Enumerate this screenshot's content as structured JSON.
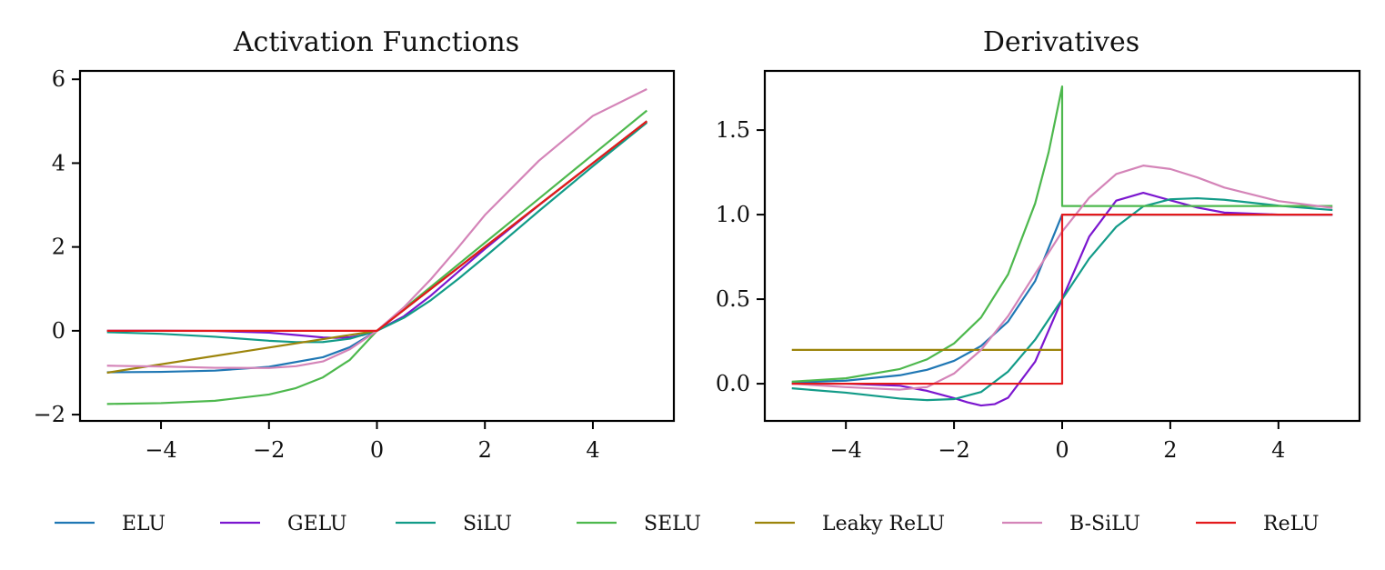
{
  "chart_data": [
    {
      "type": "line",
      "title": "Activation Functions",
      "xlabel": "",
      "ylabel": "",
      "xlim": [
        -5.5,
        5.5
      ],
      "ylim": [
        -2.15,
        6.2
      ],
      "xticks": [
        -4,
        -2,
        0,
        2,
        4
      ],
      "yticks": [
        -2,
        0,
        2,
        4,
        6
      ],
      "x_tick_labels": [
        "−4",
        "−2",
        "0",
        "2",
        "4"
      ],
      "y_tick_labels": [
        "−2",
        "0",
        "2",
        "4",
        "6"
      ],
      "grid": false,
      "series": [
        {
          "name": "ELU",
          "color": "#1f77b4",
          "x": [
            -5,
            -4,
            -3,
            -2,
            -1,
            -0.5,
            0,
            1,
            2,
            3,
            4,
            5
          ],
          "y": [
            -0.99,
            -0.98,
            -0.95,
            -0.86,
            -0.63,
            -0.39,
            0,
            1,
            2,
            3,
            4,
            5
          ]
        },
        {
          "name": "GELU",
          "color": "#7b16cf",
          "x": [
            -5,
            -4,
            -3,
            -2,
            -1.5,
            -1,
            -0.75,
            -0.5,
            -0.25,
            0,
            0.5,
            1,
            1.5,
            2,
            3,
            4,
            5
          ],
          "y": [
            0,
            0,
            -0.004,
            -0.045,
            -0.1,
            -0.159,
            -0.17,
            -0.154,
            -0.1,
            0,
            0.346,
            0.841,
            1.4,
            1.955,
            2.996,
            4,
            5
          ]
        },
        {
          "name": "SiLU",
          "color": "#129b88",
          "x": [
            -5,
            -4,
            -3,
            -2,
            -1.5,
            -1,
            -0.5,
            0,
            0.5,
            1,
            1.5,
            2,
            3,
            4,
            5
          ],
          "y": [
            -0.033,
            -0.072,
            -0.142,
            -0.238,
            -0.27,
            -0.269,
            -0.189,
            0,
            0.311,
            0.731,
            1.23,
            1.762,
            2.857,
            3.928,
            4.967
          ]
        },
        {
          "name": "SELU",
          "color": "#4db84d",
          "x": [
            -5,
            -4,
            -3,
            -2,
            -1.5,
            -1,
            -0.5,
            0,
            1,
            2,
            3,
            4,
            5
          ],
          "y": [
            -1.746,
            -1.726,
            -1.67,
            -1.52,
            -1.367,
            -1.111,
            -0.692,
            0,
            1.0507,
            2.101,
            3.152,
            4.203,
            5.254
          ]
        },
        {
          "name": "Leaky ReLU",
          "color": "#9c840b",
          "x": [
            -5,
            0,
            1,
            2,
            3,
            4,
            5
          ],
          "y": [
            -1.0,
            0,
            1,
            2,
            3,
            4,
            5
          ]
        },
        {
          "name": "B-SiLU",
          "color": "#d484b8",
          "x": [
            -5,
            -4,
            -3,
            -2,
            -1.5,
            -1,
            -0.5,
            0,
            0.5,
            1,
            1.5,
            2,
            3,
            4,
            5
          ],
          "y": [
            -0.833,
            -0.852,
            -0.882,
            -0.888,
            -0.845,
            -0.731,
            -0.439,
            0,
            0.561,
            1.231,
            1.98,
            2.762,
            4.057,
            5.128,
            5.767
          ]
        },
        {
          "name": "ReLU",
          "color": "#e31a1c",
          "x": [
            -5,
            0,
            1,
            2,
            3,
            4,
            5
          ],
          "y": [
            0,
            0,
            1,
            2,
            3,
            4,
            5
          ]
        }
      ]
    },
    {
      "type": "line",
      "title": "Derivatives",
      "xlabel": "",
      "ylabel": "",
      "xlim": [
        -5.5,
        5.5
      ],
      "ylim": [
        -0.22,
        1.85
      ],
      "xticks": [
        -4,
        -2,
        0,
        2,
        4
      ],
      "yticks": [
        0.0,
        0.5,
        1.0,
        1.5
      ],
      "x_tick_labels": [
        "−4",
        "−2",
        "0",
        "2",
        "4"
      ],
      "y_tick_labels": [
        "0.0",
        "0.5",
        "1.0",
        "1.5"
      ],
      "grid": false,
      "series": [
        {
          "name": "ELU",
          "color": "#1f77b4",
          "x": [
            -5,
            -4,
            -3,
            -2.5,
            -2,
            -1.5,
            -1,
            -0.5,
            0,
            1,
            2,
            3,
            4,
            5
          ],
          "y": [
            0.007,
            0.018,
            0.05,
            0.082,
            0.135,
            0.223,
            0.368,
            0.607,
            1.0,
            1.0,
            1.0,
            1.0,
            1.0,
            1.0
          ]
        },
        {
          "name": "GELU",
          "color": "#7b16cf",
          "x": [
            -5,
            -4,
            -3,
            -2.5,
            -2,
            -1.75,
            -1.5,
            -1.25,
            -1,
            -0.5,
            0,
            0.5,
            1,
            1.5,
            2,
            2.5,
            3,
            4,
            5
          ],
          "y": [
            0,
            0,
            -0.012,
            -0.042,
            -0.085,
            -0.11,
            -0.129,
            -0.121,
            -0.083,
            0.13,
            0.5,
            0.87,
            1.083,
            1.129,
            1.085,
            1.042,
            1.012,
            1.0,
            1.0
          ]
        },
        {
          "name": "SiLU",
          "color": "#129b88",
          "x": [
            -5,
            -4,
            -3,
            -2.5,
            -2,
            -1.5,
            -1,
            -0.5,
            0,
            0.5,
            1,
            1.5,
            2,
            2.5,
            3,
            4,
            5
          ],
          "y": [
            -0.027,
            -0.053,
            -0.088,
            -0.097,
            -0.091,
            -0.049,
            0.072,
            0.26,
            0.5,
            0.74,
            0.928,
            1.049,
            1.091,
            1.097,
            1.088,
            1.053,
            1.027
          ]
        },
        {
          "name": "SELU",
          "color": "#4db84d",
          "x": [
            -5,
            -4,
            -3,
            -2.5,
            -2,
            -1.5,
            -1,
            -0.5,
            -0.25,
            0,
            0,
            1,
            2,
            3,
            4,
            5
          ],
          "y": [
            0.012,
            0.032,
            0.087,
            0.144,
            0.238,
            0.392,
            0.647,
            1.066,
            1.369,
            1.758,
            1.0507,
            1.0507,
            1.0507,
            1.0507,
            1.0507,
            1.0507
          ]
        },
        {
          "name": "Leaky ReLU",
          "color": "#9c840b",
          "x": [
            -5,
            0
          ],
          "y": [
            0.2,
            0.2
          ]
        },
        {
          "name": "B-SiLU",
          "color": "#d484b8",
          "x": [
            -5,
            -4,
            -3,
            -2.5,
            -2,
            -1.5,
            -1,
            -0.5,
            0,
            0.5,
            1,
            1.5,
            2,
            2.5,
            3,
            4,
            5
          ],
          "y": [
            -0.0,
            -0.02,
            -0.035,
            -0.02,
            0.06,
            0.2,
            0.4,
            0.65,
            0.9,
            1.1,
            1.24,
            1.29,
            1.27,
            1.22,
            1.16,
            1.08,
            1.04
          ]
        },
        {
          "name": "ReLU",
          "color": "#e31a1c",
          "x": [
            -5,
            0,
            0,
            5
          ],
          "y": [
            0,
            0,
            1,
            1
          ]
        }
      ]
    }
  ],
  "legend": {
    "placement": "bottom",
    "entries": [
      "ELU",
      "GELU",
      "SiLU",
      "SELU",
      "Leaky ReLU",
      "B-SiLU",
      "ReLU"
    ],
    "colors": [
      "#1f77b4",
      "#7b16cf",
      "#129b88",
      "#4db84d",
      "#9c840b",
      "#d484b8",
      "#e31a1c"
    ]
  }
}
